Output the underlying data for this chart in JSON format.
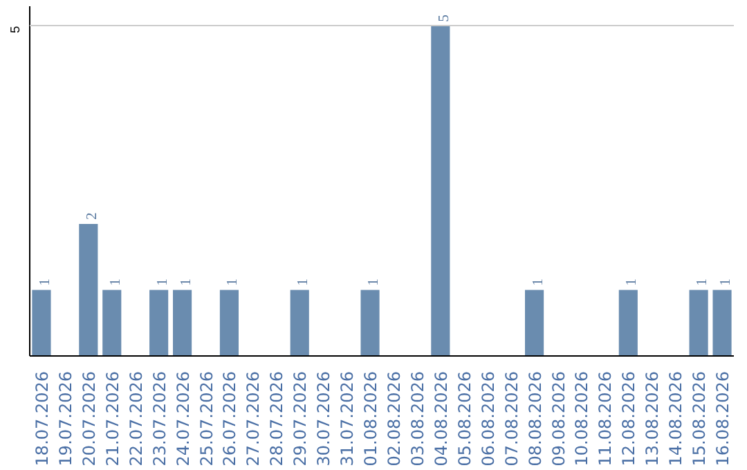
{
  "chart_data": {
    "type": "bar",
    "categories": [
      "18.07.2026",
      "19.07.2026",
      "20.07.2026",
      "21.07.2026",
      "22.07.2026",
      "23.07.2026",
      "24.07.2026",
      "25.07.2026",
      "26.07.2026",
      "27.07.2026",
      "28.07.2026",
      "29.07.2026",
      "30.07.2026",
      "31.07.2026",
      "01.08.2026",
      "02.08.2026",
      "03.08.2026",
      "04.08.2026",
      "05.08.2026",
      "06.08.2026",
      "07.08.2026",
      "08.08.2026",
      "09.08.2026",
      "10.08.2026",
      "11.08.2026",
      "12.08.2026",
      "13.08.2026",
      "14.08.2026",
      "15.08.2026",
      "16.08.2026"
    ],
    "values": [
      1,
      0,
      2,
      1,
      0,
      1,
      1,
      0,
      1,
      0,
      0,
      1,
      0,
      0,
      1,
      0,
      0,
      5,
      0,
      0,
      0,
      1,
      0,
      0,
      0,
      1,
      0,
      0,
      1,
      1
    ],
    "value_labels": [
      "1",
      null,
      "2",
      "1",
      null,
      "1",
      "1",
      null,
      "1",
      null,
      null,
      "1",
      null,
      null,
      "1",
      null,
      null,
      "5",
      null,
      null,
      null,
      "1",
      null,
      null,
      null,
      "1",
      null,
      null,
      "1",
      "1"
    ],
    "color": "#6a8caf",
    "ylim": [
      0,
      5.3
    ],
    "yticks": [
      5
    ],
    "grid": "y"
  }
}
